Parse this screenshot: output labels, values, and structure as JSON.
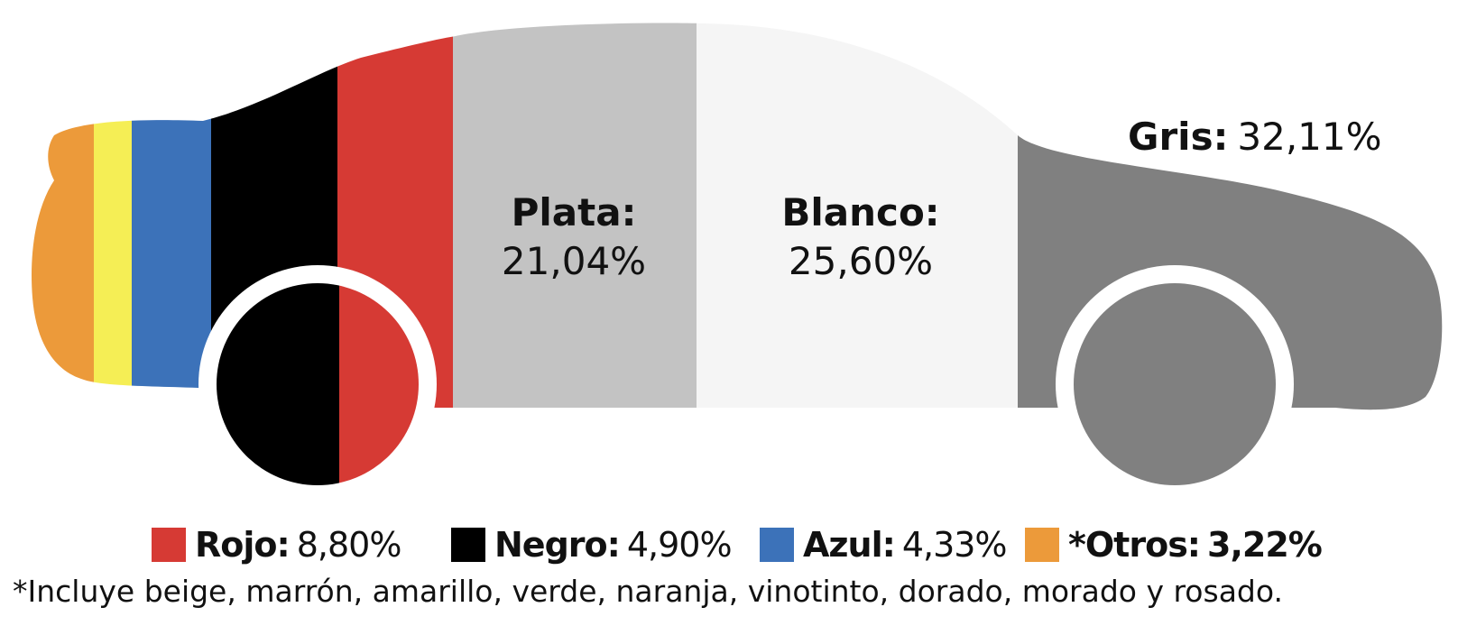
{
  "chart_data": {
    "type": "bar",
    "series": [
      {
        "name": "Gris",
        "label": "Gris:",
        "value_text": "32,11%",
        "value": 32.11,
        "color": "#808080"
      },
      {
        "name": "Blanco",
        "label": "Blanco:",
        "value_text": "25,60%",
        "value": 25.6,
        "color": "#f5f5f5"
      },
      {
        "name": "Plata",
        "label": "Plata:",
        "value_text": "21,04%",
        "value": 21.04,
        "color": "#c3c3c3"
      },
      {
        "name": "Rojo",
        "label": "Rojo:",
        "value_text": "8,80%",
        "value": 8.8,
        "color": "#d63a34"
      },
      {
        "name": "Negro",
        "label": "Negro:",
        "value_text": "4,90%",
        "value": 4.9,
        "color": "#000000"
      },
      {
        "name": "Azul",
        "label": "Azul:",
        "value_text": "4,33%",
        "value": 4.33,
        "color": "#3c72b9"
      },
      {
        "name": "Otros",
        "label": "*Otros:",
        "value_text": "3,22%",
        "value": 3.22,
        "color": "#ec9a3a"
      }
    ],
    "unlabeled_stripe_color": "#f5ee55",
    "legend": {
      "items": [
        {
          "label": "Rojo:",
          "value_text": "8,80%",
          "color": "#d63a34"
        },
        {
          "label": "Negro:",
          "value_text": "4,90%",
          "color": "#000000"
        },
        {
          "label": "Azul:",
          "value_text": "4,33%",
          "color": "#3c72b9"
        },
        {
          "label": "*Otros:",
          "value_text": "3,22%",
          "color": "#ec9a3a"
        }
      ]
    },
    "footnote": "*Incluye beige, marrón, amarillo, verde, naranja, vinotinto, dorado, morado y rosado."
  }
}
